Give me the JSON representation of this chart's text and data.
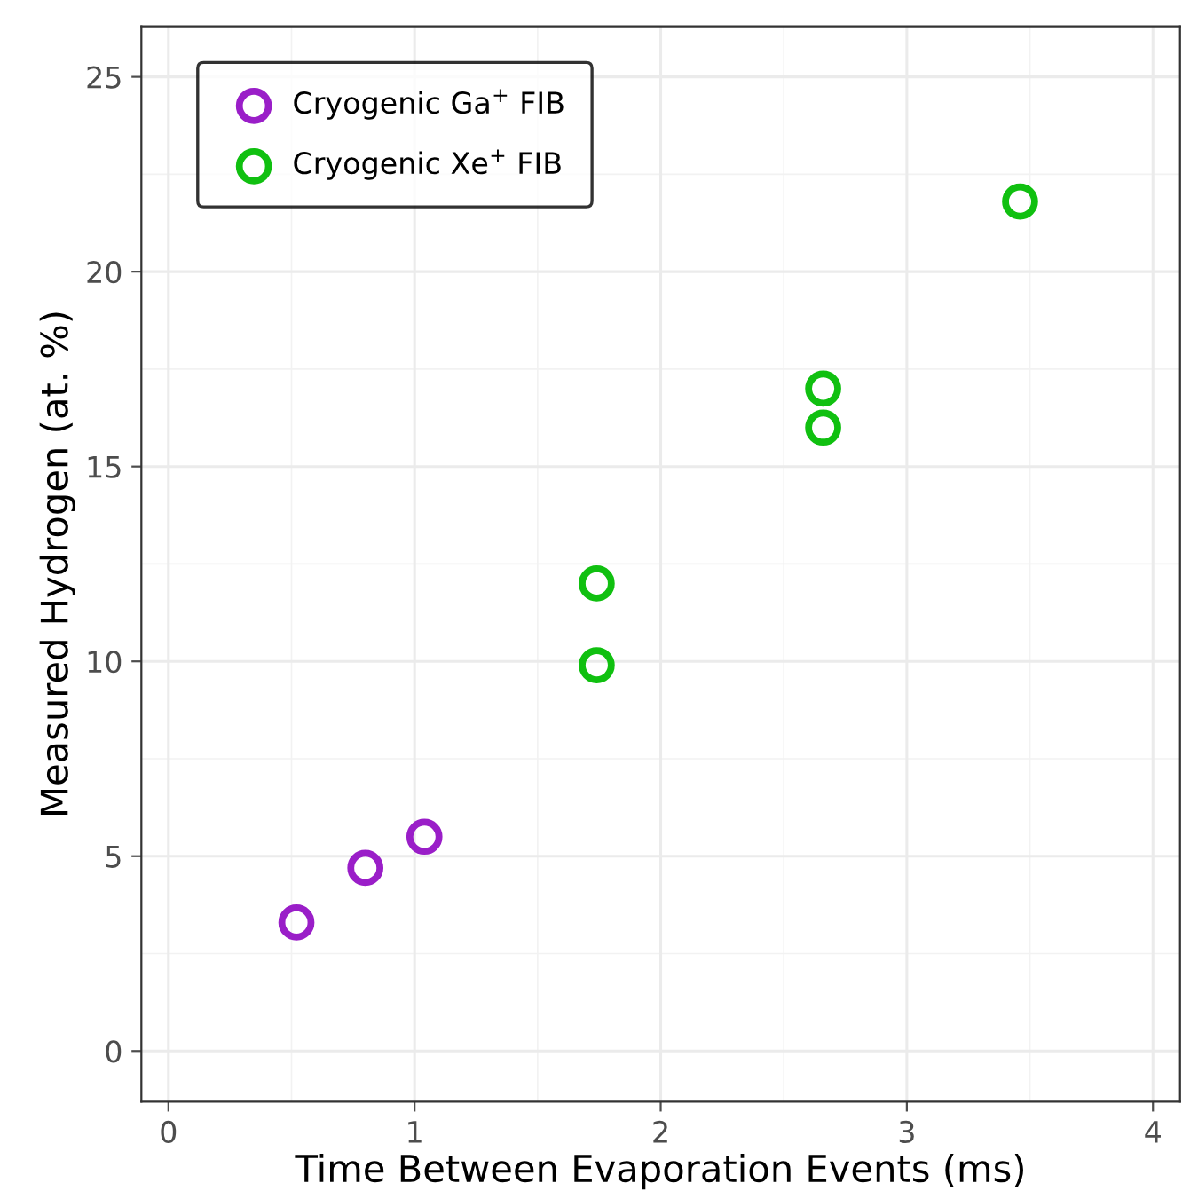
{
  "chart_data": {
    "type": "scatter",
    "xlabel": "Time Between Evaporation Events (ms)",
    "ylabel": "Measured Hydrogen (at. %)",
    "series": [
      {
        "name": "Cryogenic Ga$^{+}$ FIB",
        "color": "#9a1ec8",
        "x": [
          0.52,
          0.8,
          1.04
        ],
        "values": [
          3.3,
          4.7,
          5.5
        ]
      },
      {
        "name": "Cryogenic Xe$^{+}$ FIB",
        "color": "#10c010",
        "x": [
          1.74,
          1.74,
          2.66,
          2.66,
          3.46
        ],
        "values": [
          12.0,
          9.9,
          17.0,
          16.0,
          21.8
        ]
      }
    ],
    "xlim": [
      -0.11,
      4.11
    ],
    "ylim": [
      -1.3,
      26.3
    ],
    "xticks": [
      0,
      1,
      2,
      3,
      4
    ],
    "yticks": [
      0,
      5,
      10,
      15,
      20,
      25
    ],
    "grid": true,
    "legend": "top left",
    "marker": "circle"
  }
}
